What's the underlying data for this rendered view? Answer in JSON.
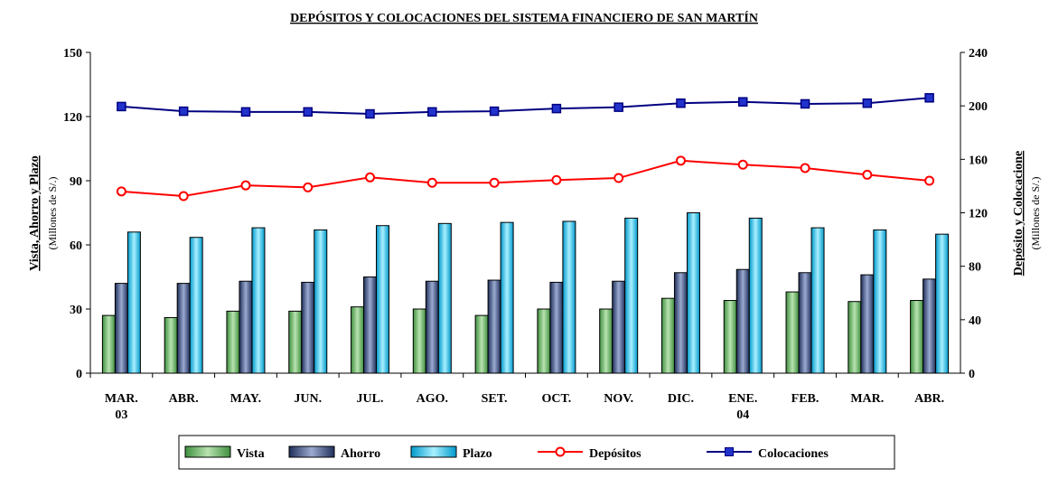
{
  "chart_data": {
    "type": "bar-line",
    "title": "DEPÓSITOS Y COLOCACIONES DEL SISTEMA FINANCIERO DE SAN MARTÍN",
    "y_label": "Vista, Ahorro y Plazo",
    "y_unit": "(Millones de S/.)",
    "y2_label": "Depósito y Colocacione",
    "y2_unit": "(Millones de S/.)",
    "categories": [
      "MAR.\n03",
      "ABR.",
      "MAY.",
      "JUN.",
      "JUL.",
      "AGO.",
      "SET.",
      "OCT.",
      "NOV.",
      "DIC.",
      "ENE.\n04",
      "FEB.",
      "MAR.",
      "ABR."
    ],
    "ylim": [
      0,
      150
    ],
    "yticks": [
      0,
      30,
      60,
      90,
      120,
      150
    ],
    "y2lim": [
      0,
      240
    ],
    "y2ticks": [
      0,
      40,
      80,
      120,
      160,
      200,
      240
    ],
    "series": [
      {
        "name": "Vista",
        "type": "bar",
        "color": "#7fc27f",
        "values": [
          27,
          26,
          29,
          29,
          31,
          30,
          27,
          30,
          30,
          35,
          34,
          38,
          33.5,
          34
        ]
      },
      {
        "name": "Ahorro",
        "type": "bar",
        "color": "#4e5f8c",
        "values": [
          42,
          42,
          43,
          42.5,
          45,
          43,
          43.5,
          42.5,
          43,
          47,
          48.5,
          47,
          46,
          44
        ]
      },
      {
        "name": "Plazo",
        "type": "bar",
        "color": "#33ccff",
        "values": [
          66,
          63.5,
          68,
          67,
          69,
          70,
          70.5,
          71,
          72.5,
          75,
          72.5,
          68,
          67,
          65
        ]
      },
      {
        "name": "Depósitos",
        "type": "line",
        "axis": "y2",
        "color": "#ff0000",
        "values": [
          136,
          132.5,
          140.5,
          139,
          146.5,
          142.5,
          142.5,
          144.5,
          146,
          159,
          156,
          153.5,
          148.5,
          144
        ]
      },
      {
        "name": "Colocaciones",
        "type": "line",
        "axis": "y2",
        "color": "#000080",
        "values": [
          199.5,
          196,
          195.5,
          195.5,
          194,
          195.5,
          196,
          198,
          199,
          202,
          203,
          201.5,
          202,
          206
        ]
      }
    ]
  }
}
